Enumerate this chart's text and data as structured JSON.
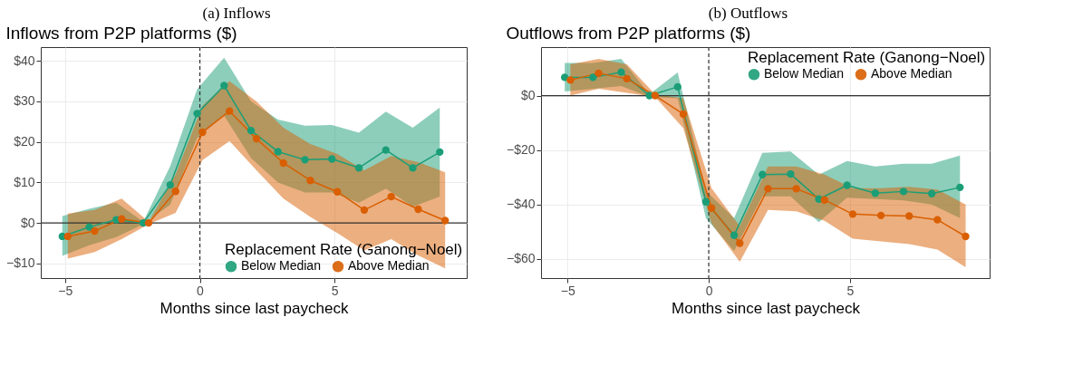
{
  "chart_data": [
    {
      "type": "line",
      "title": "(a) Inflows",
      "subtitle": "Inflows from P2P platforms ($)",
      "xlabel": "Months since last paycheck",
      "legend_title": "Replacement Rate (Ganong−Noel)",
      "series": [
        {
          "name": "Below Median",
          "color": "#1b9e77",
          "x": [
            -5.1,
            -4.1,
            -3.1,
            -2.1,
            -1.1,
            -0.1,
            0.9,
            1.9,
            2.9,
            3.9,
            4.9,
            5.9,
            6.9,
            7.9,
            8.9
          ],
          "values": [
            -3.3,
            -1,
            0.8,
            0,
            9.4,
            27,
            33.9,
            22.8,
            17.6,
            15.6,
            15.8,
            13.6,
            18,
            13.6,
            17.5
          ],
          "lower": [
            -8.1,
            -5.5,
            -3.5,
            -0.3,
            4.5,
            21,
            26.5,
            16,
            10,
            7.5,
            7.5,
            5,
            8.5,
            4,
            6.5
          ],
          "upper": [
            1.7,
            3.5,
            5,
            0.3,
            14,
            33,
            40.8,
            30,
            25.5,
            24,
            24.2,
            22.3,
            27.5,
            23.5,
            28.5
          ]
        },
        {
          "name": "Above Median",
          "color": "#d95f02",
          "x": [
            -4.9,
            -3.9,
            -2.9,
            -1.9,
            -0.9,
            0.1,
            1.1,
            2.1,
            3.1,
            4.1,
            5.1,
            6.1,
            7.1,
            8.1,
            9.1
          ],
          "values": [
            -3.3,
            -2,
            1,
            0,
            7.8,
            22.4,
            27.6,
            20.8,
            14.8,
            10.5,
            7.7,
            3.2,
            6.5,
            3.4,
            0.6
          ],
          "lower": [
            -8.8,
            -7.2,
            -4,
            -0.3,
            2.5,
            15.5,
            20.2,
            13,
            6,
            1.5,
            -2.5,
            -6.8,
            -4,
            -8,
            -11.2
          ],
          "upper": [
            2.3,
            3.2,
            6,
            0.3,
            12,
            29,
            35,
            30,
            23.5,
            19.5,
            17,
            13,
            16.5,
            15,
            12.5
          ]
        }
      ],
      "xlim": [
        -5.9,
        9.9
      ],
      "xticks": [
        {
          "value": -5,
          "label": "−5"
        },
        0,
        5
      ],
      "ylim": [
        -13.6,
        43.4
      ],
      "yticks": [
        {
          "value": -10,
          "label": "−$10"
        },
        {
          "value": 0,
          "label": "$0"
        },
        {
          "value": 10,
          "label": "$10"
        },
        {
          "value": 20,
          "label": "$20"
        },
        {
          "value": 30,
          "label": "$30"
        },
        {
          "value": 40,
          "label": "$40"
        }
      ],
      "grid": true,
      "legend": "bottom right",
      "marker": "circle",
      "ref_lines": [
        {
          "axis": "x",
          "value": 0,
          "line_style": "dashed",
          "color": "#333333"
        },
        {
          "axis": "y",
          "value": 0,
          "line_style": "solid",
          "color": "#333333"
        }
      ]
    },
    {
      "type": "line",
      "title": "(b) Outflows",
      "subtitle": "Outflows from P2P platforms ($)",
      "xlabel": "Months since last paycheck",
      "legend_title": "Replacement Rate (Ganong−Noel)",
      "series": [
        {
          "name": "Below Median",
          "color": "#1b9e77",
          "x": [
            -5.1,
            -4.1,
            -3.1,
            -2.1,
            -1.1,
            -0.1,
            0.9,
            1.9,
            2.9,
            3.9,
            4.9,
            5.9,
            6.9,
            7.9,
            8.9
          ],
          "values": [
            6.7,
            6.7,
            8.6,
            0,
            3.2,
            -39,
            -51.3,
            -29,
            -28.8,
            -38,
            -32.9,
            -35.8,
            -35.2,
            -36,
            -33.7
          ],
          "lower": [
            1.5,
            2.5,
            3.5,
            -0.5,
            -1,
            -45,
            -57,
            -37,
            -37,
            -46.5,
            -37.5,
            -38,
            -38.5,
            -40,
            -45
          ],
          "upper": [
            12,
            12,
            13.5,
            0.5,
            8.5,
            -35,
            -45,
            -21,
            -20.5,
            -29,
            -24,
            -26,
            -25,
            -25,
            -22
          ]
        },
        {
          "name": "Above Median",
          "color": "#d95f02",
          "x": [
            -4.9,
            -3.9,
            -2.9,
            -1.9,
            -0.9,
            0.1,
            1.1,
            2.1,
            3.1,
            4.1,
            5.1,
            6.1,
            7.1,
            8.1,
            9.1
          ],
          "values": [
            5.7,
            8.2,
            6.2,
            0,
            -6.8,
            -41.3,
            -54.2,
            -34.2,
            -34.2,
            -38.3,
            -43.5,
            -44,
            -44.2,
            -45.6,
            -51.7
          ],
          "lower": [
            0,
            2.5,
            1,
            -0.5,
            -12,
            -47,
            -61,
            -42,
            -42.5,
            -46,
            -52.5,
            -53.5,
            -54.5,
            -56.5,
            -63
          ],
          "upper": [
            11.5,
            13.5,
            11.5,
            0.5,
            -1,
            -34,
            -48,
            -26,
            -26,
            -29,
            -34,
            -34,
            -33.5,
            -34.5,
            -40
          ]
        }
      ],
      "xlim": [
        -5.94,
        9.95
      ],
      "xticks": [
        {
          "value": -5,
          "label": "−5"
        },
        0,
        5
      ],
      "ylim": [
        -67,
        17.8
      ],
      "yticks": [
        {
          "value": -60,
          "label": "−$60"
        },
        {
          "value": -40,
          "label": "−$40"
        },
        {
          "value": -20,
          "label": "−$20"
        },
        {
          "value": 0,
          "label": "$0"
        }
      ],
      "grid": true,
      "legend": "top right",
      "marker": "circle",
      "ref_lines": [
        {
          "axis": "x",
          "value": 0,
          "line_style": "dashed",
          "color": "#333333"
        },
        {
          "axis": "y",
          "value": 0,
          "line_style": "solid",
          "color": "#333333"
        }
      ]
    }
  ]
}
